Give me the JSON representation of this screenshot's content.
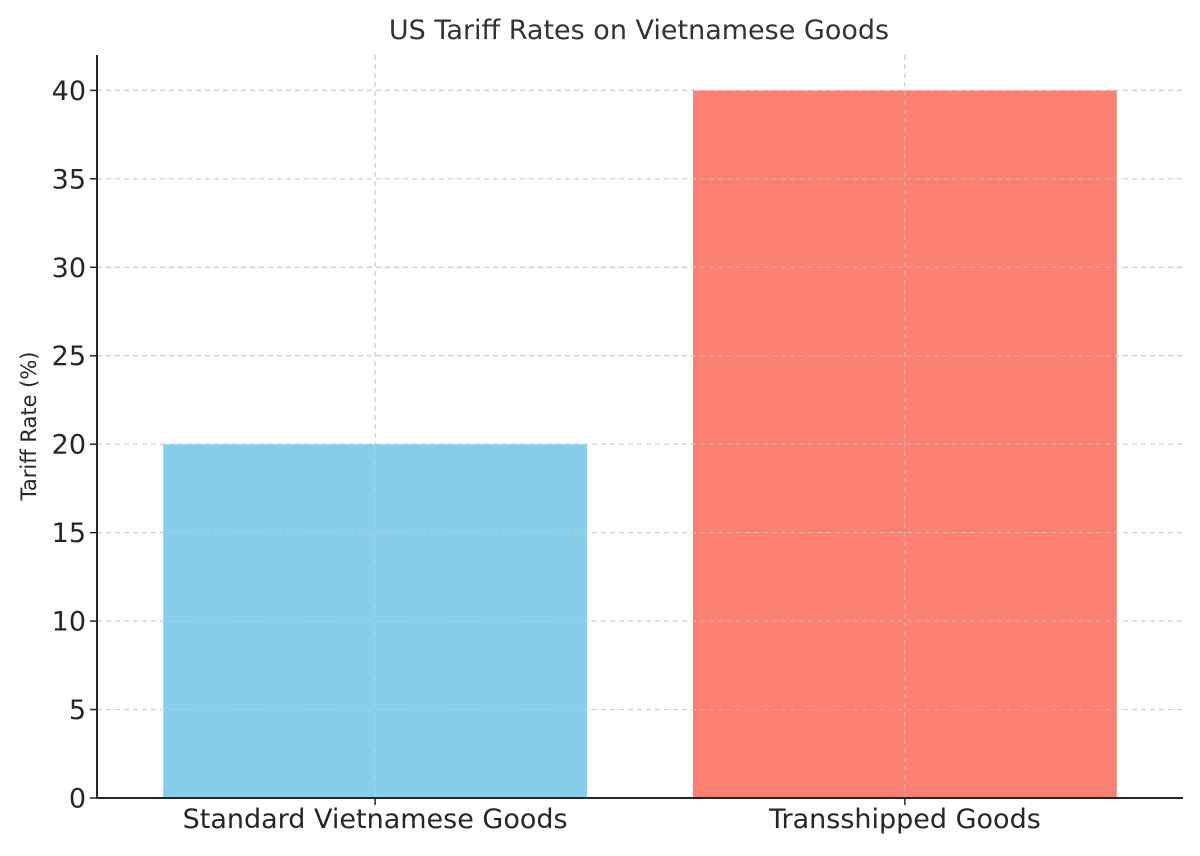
{
  "chart_data": {
    "type": "bar",
    "title": "US Tariff Rates on Vietnamese Goods",
    "xlabel": "",
    "ylabel": "Tariff Rate (%)",
    "categories": [
      "Standard Vietnamese Goods",
      "Transshipped Goods"
    ],
    "values": [
      20,
      40
    ],
    "colors": [
      "#87CEEB",
      "#FA8072"
    ],
    "ylim": [
      0,
      42
    ],
    "yticks": [
      0,
      5,
      10,
      15,
      20,
      25,
      30,
      35,
      40
    ],
    "grid": true,
    "legend": "none"
  }
}
